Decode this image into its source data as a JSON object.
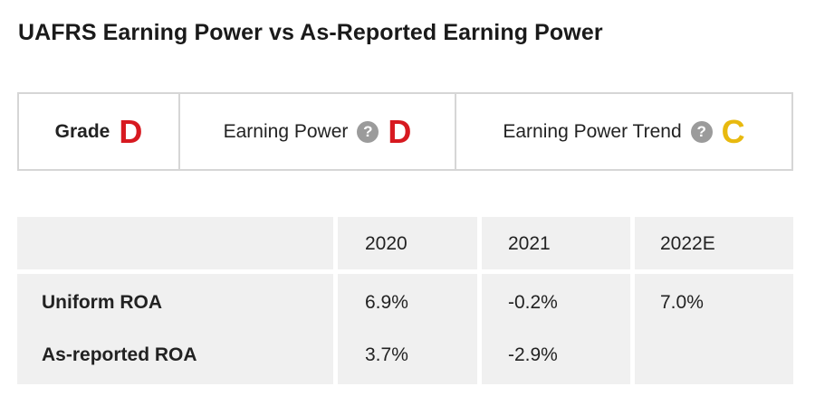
{
  "title": "UAFRS Earning Power vs As-Reported Earning Power",
  "grades": {
    "grade_label": "Grade",
    "grade_value": "D",
    "earning_power_label": "Earning Power",
    "earning_power_value": "D",
    "trend_label": "Earning Power Trend",
    "trend_value": "C",
    "help_glyph": "?"
  },
  "colors": {
    "grade_red": "#d71920",
    "grade_yellow": "#e8b90f",
    "cell_bg": "#f0f0f0"
  },
  "table": {
    "columns": [
      "",
      "2020",
      "2021",
      "2022E"
    ],
    "rows": [
      {
        "label": "Uniform ROA",
        "values": [
          "6.9%",
          "-0.2%",
          "7.0%"
        ]
      },
      {
        "label": "As-reported ROA",
        "values": [
          "3.7%",
          "-2.9%",
          ""
        ]
      }
    ]
  }
}
